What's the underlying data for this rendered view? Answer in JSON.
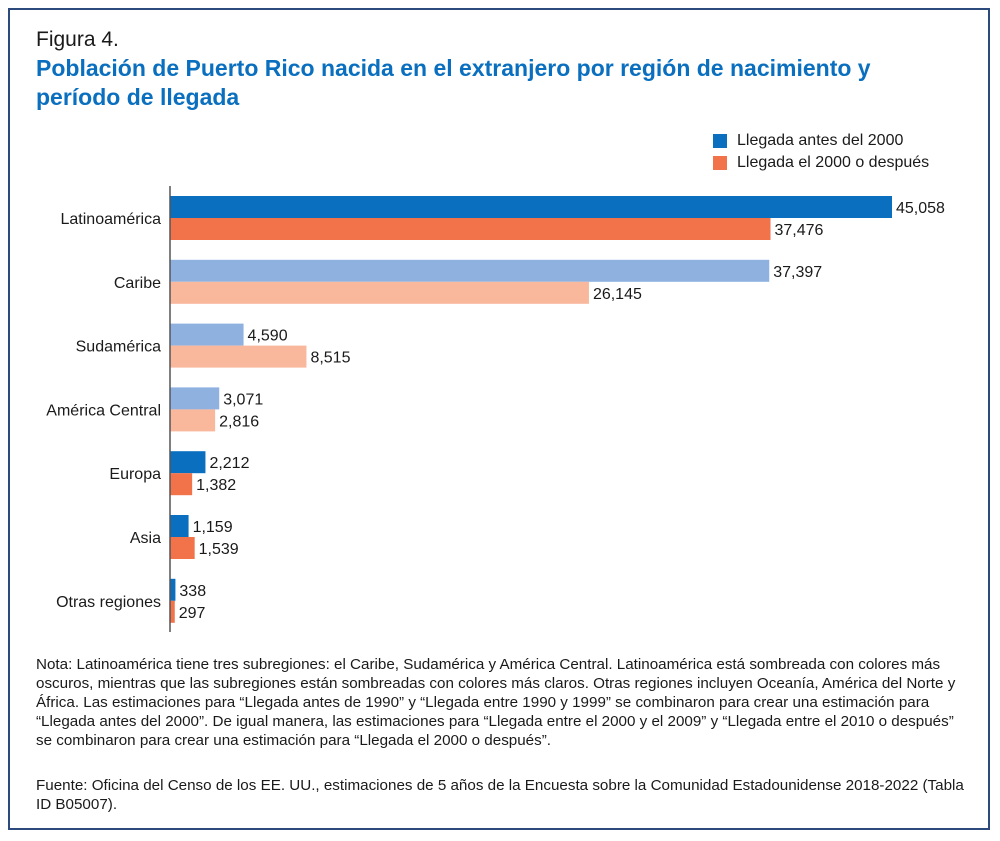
{
  "figure_label": "Figura 4.",
  "title": "Población de Puerto Rico nacida en el extranjero por región de nacimiento y período de llegada",
  "note": "Nota: Latinoamérica tiene tres subregiones: el Caribe, Sudamérica y América Central. Latinoamérica está sombreada con colores más oscuros, mientras que las subregiones están sombreadas con colores más claros. Otras regiones incluyen Oceanía, América del Norte y África. Las estimaciones para “Llegada antes de 1990” y “Llegada entre 1990 y 1999” se combinaron para crear una estimación para “Llegada antes del 2000”. De igual manera, las estimaciones para “Llegada entre el 2000 y el 2009” y “Llegada entre el 2010 o después” se combinaron para crear una estimación para “Llegada el 2000 o después”.",
  "source": "Fuente: Oficina del Censo de los EE. UU., estimaciones de 5 años de la Encuesta sobre la Comunidad Estadounidense 2018-2022 (Tabla ID B05007).",
  "chart_data": {
    "type": "bar",
    "orientation": "horizontal",
    "title": "Población de Puerto Rico nacida en el extranjero por región de nacimiento y período de llegada",
    "categories": [
      "Latinoamérica",
      "Caribe",
      "Sudamérica",
      "América Central",
      "Europa",
      "Asia",
      "Otras regiones"
    ],
    "series": [
      {
        "name": "Llegada antes del 2000",
        "values": [
          45058,
          37397,
          4590,
          3071,
          2212,
          1159,
          338
        ],
        "labels": [
          "45,058",
          "37,397",
          "4,590",
          "3,071",
          "2,212",
          "1,159",
          "338"
        ],
        "color": "#0a6fbe",
        "light_color": "#8eb1e0"
      },
      {
        "name": "Llegada el 2000 o después",
        "values": [
          37476,
          26145,
          8515,
          2816,
          1382,
          1539,
          297
        ],
        "labels": [
          "37,476",
          "26,145",
          "8,515",
          "2,816",
          "1,382",
          "1,539",
          "297"
        ],
        "color": "#f2724a",
        "light_color": "#f9b79c"
      }
    ],
    "light_categories": [
      "Caribe",
      "Sudamérica",
      "América Central"
    ],
    "xlim": [
      0,
      45058
    ],
    "grid": false,
    "legend": "top-right"
  }
}
